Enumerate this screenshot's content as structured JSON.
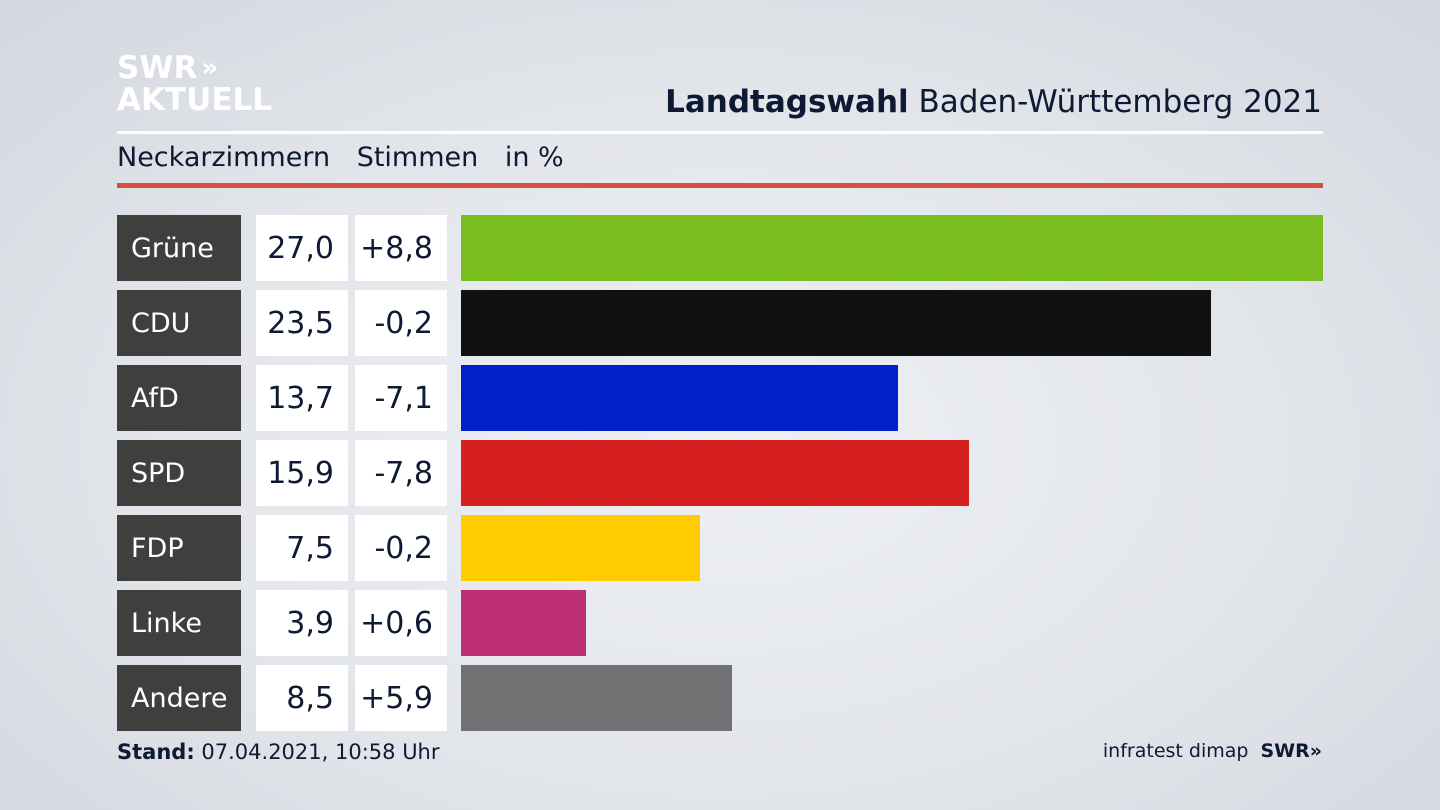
{
  "logo": {
    "line1": "SWR",
    "chevrons": "»",
    "line2": "AKTUELL"
  },
  "header": {
    "title_bold": "Landtagswahl",
    "title_rest": "Baden-Württemberg 2021"
  },
  "subheader": {
    "region": "Neckarzimmern",
    "measure": "Stimmen",
    "unit": "in %"
  },
  "colors": {
    "accent_rule": "#d6503c",
    "label_bg": "#3f3f3d"
  },
  "chart_data": {
    "type": "bar",
    "orientation": "horizontal",
    "categories": [
      "Grüne",
      "CDU",
      "AfD",
      "SPD",
      "FDP",
      "Linke",
      "Andere"
    ],
    "values": [
      27.0,
      23.5,
      13.7,
      15.9,
      7.5,
      3.9,
      8.5
    ],
    "value_labels": [
      "27,0",
      "23,5",
      "13,7",
      "15,9",
      "7,5",
      "3,9",
      "8,5"
    ],
    "diff_labels": [
      "+8,8",
      "-0,2",
      "-7,1",
      "-7,8",
      "-0,2",
      "+0,6",
      "+5,9"
    ],
    "bar_colors": [
      "#78be1e",
      "#111111",
      "#0021c9",
      "#d61f1f",
      "#ffcc00",
      "#be3075",
      "#717173"
    ],
    "xlim": [
      0,
      27.0
    ]
  },
  "footer": {
    "stand_label": "Stand:",
    "stand_value": "07.04.2021, 10:58 Uhr",
    "source": "infratest dimap",
    "brand": "SWR»"
  }
}
